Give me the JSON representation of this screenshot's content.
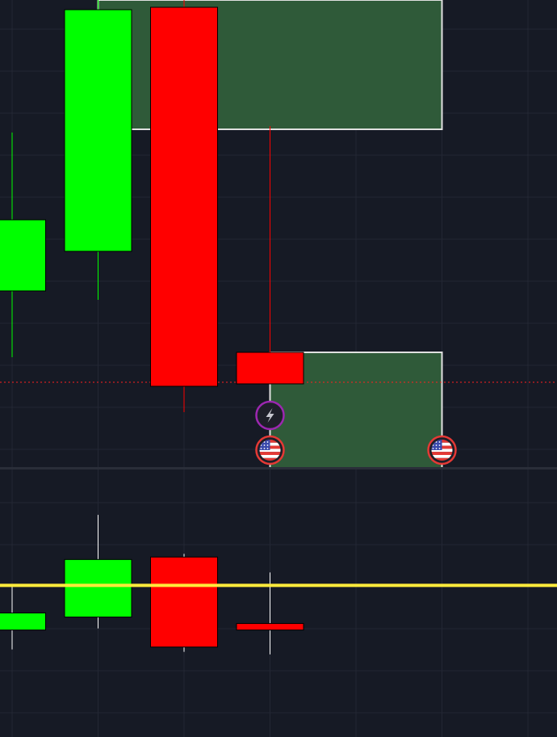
{
  "colors": {
    "background": "#161a25",
    "pane_divider": "#2a2e39",
    "grid": "#232734",
    "up": "#00ff00",
    "down": "#ff0000",
    "up_wick": "#00ff00",
    "down_wick": "#ff0000",
    "volume_wick": "#ffffff",
    "zone_fill": "#2f5a39",
    "zone_border": "#e0e0e0",
    "price_line": "#ff2020",
    "yellow_line": "#ffeb3b",
    "event_purple": "#9c27b0",
    "event_red": "#e53935"
  },
  "icons": {
    "lightning": "lightning-icon",
    "flag": "us-flag-icon"
  },
  "chart_data": [
    {
      "type": "candlestick",
      "pane": "price",
      "x": [
        0,
        1,
        2,
        3
      ],
      "ylim": [
        0,
        580
      ],
      "candles": [
        {
          "x": 0,
          "open": 220,
          "close": 308,
          "high": 416,
          "low": 138
        },
        {
          "x": 1,
          "open": 269,
          "close": 568,
          "high": 580,
          "low": 209
        },
        {
          "x": 2,
          "open": 571,
          "close": 102,
          "high": 580,
          "low": 70
        },
        {
          "x": 3,
          "open": 144,
          "close": 105,
          "high": 424,
          "low": 105
        }
      ],
      "zones": [
        {
          "x_start": 1,
          "x_end": 5,
          "y_low": 420,
          "y_high": 580
        },
        {
          "x_start": 3,
          "x_end": 5,
          "y_low": 0,
          "y_high": 144
        }
      ],
      "price_line": 107,
      "events": [
        {
          "x": 3,
          "icon": "lightning-icon",
          "color": "#9c27b0"
        },
        {
          "x": 3,
          "icon": "us-flag-icon",
          "color": "#e53935"
        },
        {
          "x": 5,
          "icon": "us-flag-icon",
          "color": "#e53935"
        }
      ],
      "grid": true
    },
    {
      "type": "candlestick",
      "pane": "indicator",
      "x": [
        0,
        1,
        2,
        3
      ],
      "ylim": [
        0,
        330
      ],
      "candles": [
        {
          "x": 0,
          "open": 132,
          "close": 153,
          "high": 187,
          "low": 108
        },
        {
          "x": 1,
          "open": 148,
          "close": 219,
          "high": 274,
          "low": 134
        },
        {
          "x": 2,
          "open": 222,
          "close": 111,
          "high": 226,
          "low": 105
        },
        {
          "x": 3,
          "open": 140,
          "close": 132,
          "high": 203,
          "low": 102
        }
      ],
      "hline": 187,
      "grid": true
    }
  ]
}
